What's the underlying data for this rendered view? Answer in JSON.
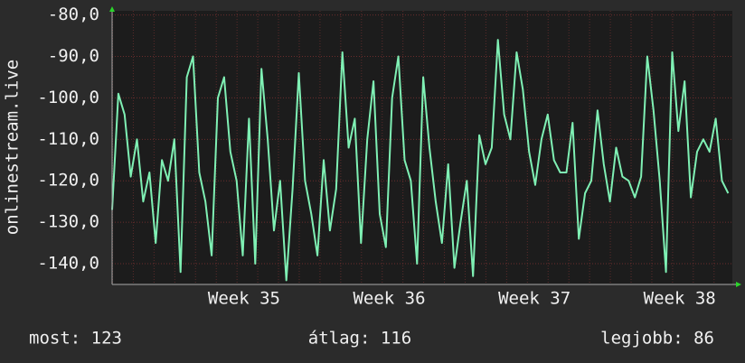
{
  "chart_data": {
    "type": "line",
    "y_label": "onlinestream.live",
    "x": [
      0,
      0.3,
      0.6,
      0.9,
      1.2,
      1.5,
      1.8,
      2.1,
      2.4,
      2.7,
      3,
      3.3,
      3.6,
      3.9,
      4.2,
      4.5,
      4.8,
      5.1,
      5.4,
      5.7,
      6,
      6.3,
      6.6,
      6.9,
      7.2,
      7.5,
      7.8,
      8.1,
      8.4,
      8.7,
      9,
      9.3,
      9.6,
      9.9,
      10.2,
      10.5,
      10.8,
      11.1,
      11.4,
      11.7,
      12,
      12.3,
      12.6,
      12.9,
      13.2,
      13.5,
      13.8,
      14.1,
      14.4,
      14.7,
      15,
      15.3,
      15.6,
      15.9,
      16.2,
      16.5,
      16.8,
      17.1,
      17.4,
      17.7,
      18,
      18.3,
      18.6,
      18.9,
      19.2,
      19.5,
      19.8,
      20.1,
      20.4,
      20.7,
      21,
      21.3,
      21.6,
      21.9,
      22.2,
      22.5,
      22.8,
      23.1,
      23.4,
      23.7,
      24,
      24.3,
      24.6,
      24.9,
      25.2,
      25.5,
      25.8,
      26.1,
      26.4,
      26.7,
      27,
      27.3,
      27.6,
      27.9,
      28.2,
      28.5,
      28.8,
      29.1,
      29.4,
      29.7
    ],
    "series": [
      {
        "color": "#7ff0b4",
        "values": [
          -127,
          -99,
          -104,
          -119,
          -110,
          -125,
          -118,
          -135,
          -115,
          -120,
          -110,
          -142,
          -95,
          -90,
          -118,
          -125,
          -138,
          -100,
          -95,
          -113,
          -120,
          -138,
          -105,
          -140,
          -93,
          -110,
          -132,
          -120,
          -144,
          -122,
          -94,
          -120,
          -128,
          -138,
          -115,
          -132,
          -122,
          -89,
          -112,
          -105,
          -135,
          -110,
          -96,
          -128,
          -136,
          -100,
          -90,
          -115,
          -120,
          -140,
          -95,
          -112,
          -125,
          -135,
          -116,
          -141,
          -130,
          -120,
          -143,
          -109,
          -116,
          -112,
          -86,
          -104,
          -110,
          -89,
          -98,
          -113,
          -121,
          -110,
          -104,
          -115,
          -118,
          -118,
          -106,
          -134,
          -123,
          -120,
          -103,
          -116,
          -125,
          -112,
          -119,
          -120,
          -124,
          -119,
          -90,
          -103,
          -120,
          -142,
          -89,
          -108,
          -96,
          -124,
          -113,
          -110,
          -113,
          -105,
          -120,
          -123
        ]
      }
    ],
    "xlim": [
      0,
      29.9
    ],
    "xticks": [
      {
        "value": 6.36,
        "label": "Week 35"
      },
      {
        "value": 13.36,
        "label": "Week 36"
      },
      {
        "value": 20.36,
        "label": "Week 37"
      },
      {
        "value": 27.36,
        "label": "Week 38"
      }
    ],
    "ylim": [
      -145,
      -79
    ],
    "yticks": [
      {
        "value": -80,
        "label": "-80,0"
      },
      {
        "value": -90,
        "label": "-90,0"
      },
      {
        "value": -100,
        "label": "-100,0"
      },
      {
        "value": -110,
        "label": "-110,0"
      },
      {
        "value": -120,
        "label": "-120,0"
      },
      {
        "value": -130,
        "label": "-130,0"
      },
      {
        "value": -140,
        "label": "-140,0"
      }
    ],
    "grid": true,
    "footer": [
      "most: 123",
      "átlag: 116",
      "legjobb: 86"
    ]
  }
}
